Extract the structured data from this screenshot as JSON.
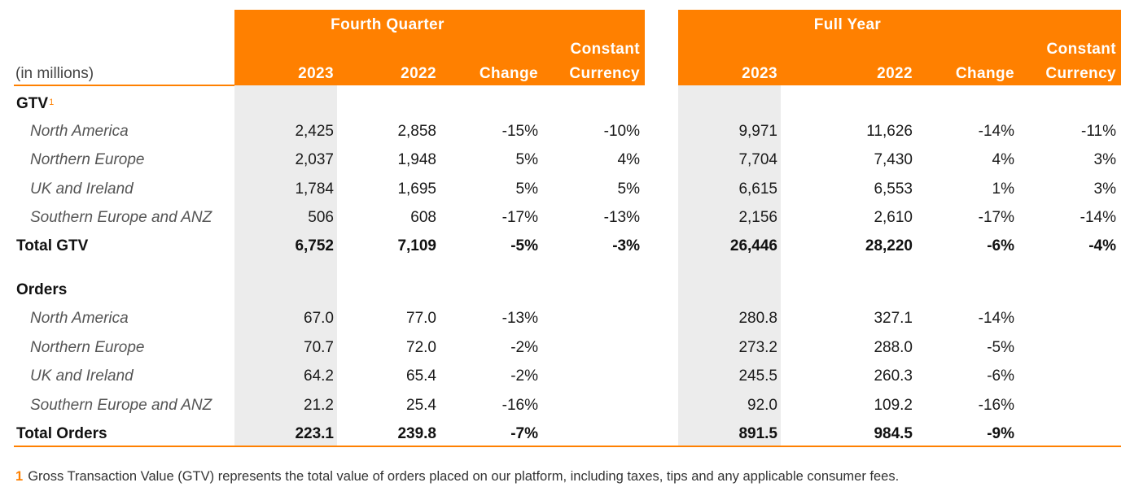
{
  "header": {
    "units_label": "(in millions)",
    "groups": [
      {
        "title": "Fourth Quarter",
        "columns": [
          {
            "line1": "",
            "line2": "2023"
          },
          {
            "line1": "",
            "line2": "2022"
          },
          {
            "line1": "",
            "line2": "Change"
          },
          {
            "line1": "Constant",
            "line2": "Currency"
          }
        ]
      },
      {
        "title": "Full Year",
        "columns": [
          {
            "line1": "",
            "line2": "2023"
          },
          {
            "line1": "",
            "line2": "2022"
          },
          {
            "line1": "",
            "line2": "Change"
          },
          {
            "line1": "Constant",
            "line2": "Currency"
          }
        ]
      }
    ]
  },
  "sections": [
    {
      "title": "GTV",
      "title_superscript": "1",
      "rows": [
        {
          "label": "North America",
          "fq": [
            "2,425",
            "2,858",
            "-15%",
            "-10%"
          ],
          "fy": [
            "9,971",
            "11,626",
            "-14%",
            "-11%"
          ]
        },
        {
          "label": "Northern Europe",
          "fq": [
            "2,037",
            "1,948",
            "5%",
            "4%"
          ],
          "fy": [
            "7,704",
            "7,430",
            "4%",
            "3%"
          ]
        },
        {
          "label": "UK and Ireland",
          "fq": [
            "1,784",
            "1,695",
            "5%",
            "5%"
          ],
          "fy": [
            "6,615",
            "6,553",
            "1%",
            "3%"
          ]
        },
        {
          "label": "Southern Europe and ANZ",
          "fq": [
            "506",
            "608",
            "-17%",
            "-13%"
          ],
          "fy": [
            "2,156",
            "2,610",
            "-17%",
            "-14%"
          ]
        }
      ],
      "total": {
        "label": "Total GTV",
        "fq": [
          "6,752",
          "7,109",
          "-5%",
          "-3%"
        ],
        "fy": [
          "26,446",
          "28,220",
          "-6%",
          "-4%"
        ]
      }
    },
    {
      "title": "Orders",
      "title_superscript": "",
      "rows": [
        {
          "label": "North America",
          "fq": [
            "67.0",
            "77.0",
            "-13%",
            ""
          ],
          "fy": [
            "280.8",
            "327.1",
            "-14%",
            ""
          ]
        },
        {
          "label": "Northern Europe",
          "fq": [
            "70.7",
            "72.0",
            "-2%",
            ""
          ],
          "fy": [
            "273.2",
            "288.0",
            "-5%",
            ""
          ]
        },
        {
          "label": "UK and Ireland",
          "fq": [
            "64.2",
            "65.4",
            "-2%",
            ""
          ],
          "fy": [
            "245.5",
            "260.3",
            "-6%",
            ""
          ]
        },
        {
          "label": "Southern Europe and ANZ",
          "fq": [
            "21.2",
            "25.4",
            "-16%",
            ""
          ],
          "fy": [
            "92.0",
            "109.2",
            "-16%",
            ""
          ]
        }
      ],
      "total": {
        "label": "Total Orders",
        "fq": [
          "223.1",
          "239.8",
          "-7%",
          ""
        ],
        "fy": [
          "891.5",
          "984.5",
          "-9%",
          ""
        ]
      }
    }
  ],
  "footnote": {
    "number": "1",
    "text": "Gross Transaction Value (GTV) represents the total value of orders placed on our platform, including taxes, tips and any applicable consumer fees."
  },
  "colors": {
    "accent": "#FF8000",
    "shade": "#ececec",
    "text": "#1a1a1a",
    "sublabel": "#555555"
  }
}
